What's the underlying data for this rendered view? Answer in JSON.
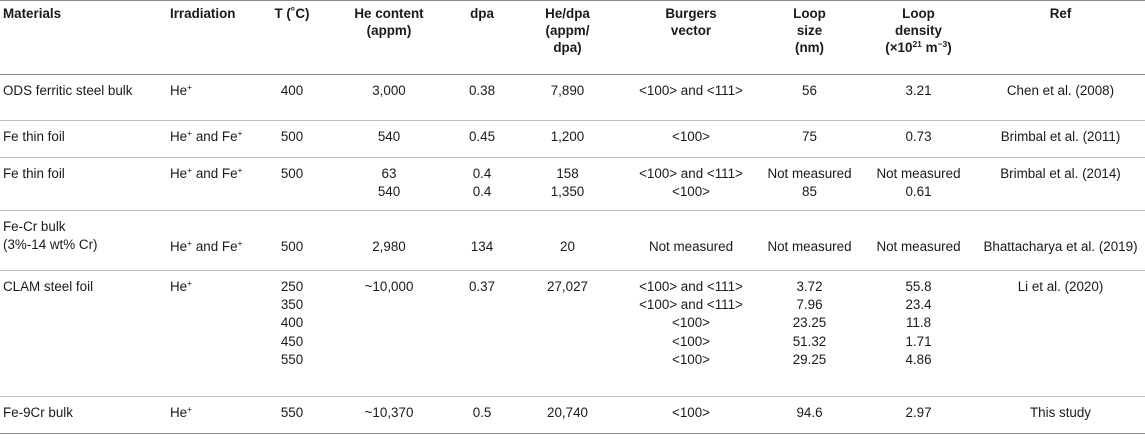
{
  "headers": {
    "materials": [
      "Materials"
    ],
    "irradiation": [
      "Irradiation"
    ],
    "temp": [
      "T (˚C)"
    ],
    "he_content": [
      "He content",
      "(appm)"
    ],
    "dpa": [
      "dpa"
    ],
    "he_dpa": [
      "He/dpa",
      "(appm/",
      "dpa)"
    ],
    "burgers": [
      "Burgers",
      "vector"
    ],
    "loop_size": [
      "Loop",
      "size",
      "(nm)"
    ],
    "loop_density_1": "Loop",
    "loop_density_2": "density",
    "loop_density_unit_a": "(×10",
    "loop_density_unit_exp1": "21",
    "loop_density_unit_b": " m",
    "loop_density_unit_exp2": "−3",
    "loop_density_unit_c": ")",
    "ref": [
      "Ref"
    ]
  },
  "rows": [
    {
      "material": [
        "ODS ferritic steel bulk"
      ],
      "irr_base": "He",
      "irr_sup": "+",
      "irr_and": "",
      "irr_base2": "",
      "irr_sup2": "",
      "temp": [
        "400"
      ],
      "he_content": [
        "3,000"
      ],
      "dpa": [
        "0.38"
      ],
      "he_dpa": [
        "7,890"
      ],
      "burgers": [
        "<100> and <111>"
      ],
      "loop_size": [
        "56"
      ],
      "loop_density": [
        "3.21"
      ],
      "ref": "Chen et al. (2008)"
    },
    {
      "material": [
        "Fe thin foil"
      ],
      "irr_base": "He",
      "irr_sup": "+",
      "irr_and": " and ",
      "irr_base2": "Fe",
      "irr_sup2": "+",
      "temp": [
        "500"
      ],
      "he_content": [
        "540"
      ],
      "dpa": [
        "0.45"
      ],
      "he_dpa": [
        "1,200"
      ],
      "burgers": [
        "<100>"
      ],
      "loop_size": [
        "75"
      ],
      "loop_density": [
        "0.73"
      ],
      "ref": "Brimbal et al. (2011)"
    },
    {
      "material": [
        "Fe thin foil"
      ],
      "irr_base": "He",
      "irr_sup": "+",
      "irr_and": " and ",
      "irr_base2": "Fe",
      "irr_sup2": "+",
      "temp": [
        "500"
      ],
      "he_content": [
        "63",
        "540"
      ],
      "dpa": [
        "0.4",
        "0.4"
      ],
      "he_dpa": [
        "158",
        "1,350"
      ],
      "burgers": [
        "<100> and <111>",
        "<100>"
      ],
      "loop_size": [
        "Not measured",
        "85"
      ],
      "loop_density": [
        "Not measured",
        "0.61"
      ],
      "ref": "Brimbal et al. (2014)"
    },
    {
      "material": [
        "Fe-Cr bulk",
        "(3%-14 wt% Cr)"
      ],
      "irr_base": "He",
      "irr_sup": "+",
      "irr_and": " and ",
      "irr_base2": "Fe",
      "irr_sup2": "+",
      "temp": [
        "500"
      ],
      "he_content": [
        "2,980"
      ],
      "dpa": [
        "134"
      ],
      "he_dpa": [
        "20"
      ],
      "burgers": [
        "Not measured"
      ],
      "loop_size": [
        "Not measured"
      ],
      "loop_density": [
        "Not measured"
      ],
      "ref": "Bhattacharya et al. (2019)"
    },
    {
      "material": [
        "CLAM steel foil"
      ],
      "irr_base": "He",
      "irr_sup": "+",
      "irr_and": "",
      "irr_base2": "",
      "irr_sup2": "",
      "temp": [
        "250",
        "350",
        "400",
        "450",
        "550"
      ],
      "he_content": [
        "~10,000"
      ],
      "dpa": [
        "0.37"
      ],
      "he_dpa": [
        "27,027"
      ],
      "burgers": [
        "<100> and <111>",
        "<100> and <111>",
        "<100>",
        "<100>",
        "<100>"
      ],
      "loop_size": [
        "3.72",
        "7.96",
        "23.25",
        "51.32",
        "29.25"
      ],
      "loop_density": [
        "55.8",
        "23.4",
        "11.8",
        "1.71",
        "4.86"
      ],
      "ref": "Li et al. (2020)"
    },
    {
      "material": [
        "Fe-9Cr bulk"
      ],
      "irr_base": "He",
      "irr_sup": "+",
      "irr_and": "",
      "irr_base2": "",
      "irr_sup2": "",
      "temp": [
        "550"
      ],
      "he_content": [
        "~10,370"
      ],
      "dpa": [
        "0.5"
      ],
      "he_dpa": [
        "20,740"
      ],
      "burgers": [
        "<100>"
      ],
      "loop_size": [
        "94.6"
      ],
      "loop_density": [
        "2.97"
      ],
      "ref": "This study"
    }
  ]
}
